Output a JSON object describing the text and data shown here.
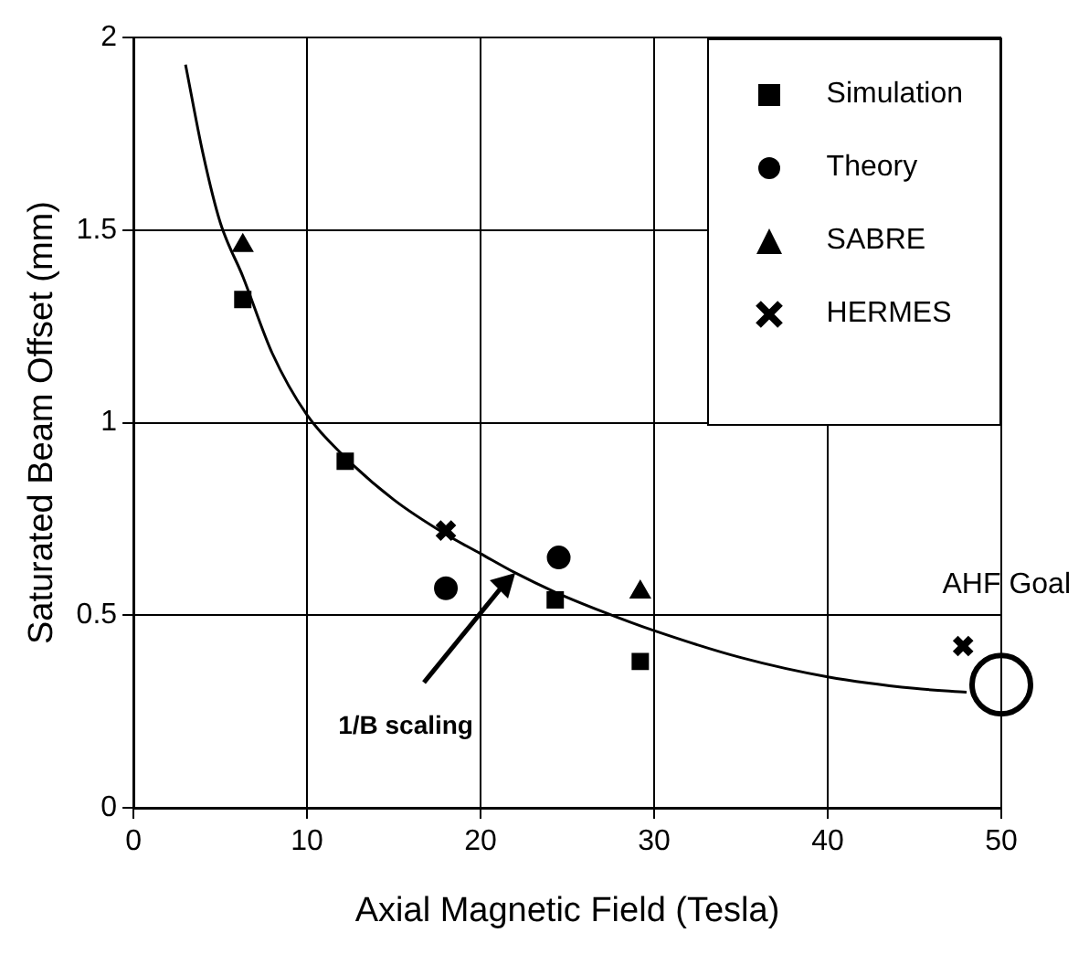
{
  "chart_data": {
    "type": "scatter",
    "xlabel": "Axial Magnetic Field (Tesla)",
    "ylabel": "Saturated Beam Offset (mm)",
    "xlim": [
      0,
      50
    ],
    "xticks": [
      0,
      10,
      20,
      30,
      40,
      50
    ],
    "ylim": [
      0,
      2
    ],
    "yticks": [
      0,
      0.5,
      1,
      1.5,
      2
    ],
    "grid": true,
    "legend": "top right",
    "series": [
      {
        "name": "Simulation",
        "color": "#000000",
        "marker": "square",
        "x": [
          6.3,
          12.2,
          24.3,
          29.2
        ],
        "values": [
          1.32,
          0.9,
          0.54,
          0.38
        ]
      },
      {
        "name": "Theory",
        "color": "#000000",
        "marker": "circle",
        "x": [
          18,
          24.5
        ],
        "values": [
          0.57,
          0.65
        ]
      },
      {
        "name": "SABRE",
        "color": "#000000",
        "marker": "triangle",
        "x": [
          6.3,
          29.2
        ],
        "values": [
          1.46,
          0.56
        ]
      },
      {
        "name": "HERMES",
        "color": "#000000",
        "marker": "cross",
        "x": [
          18,
          47.8
        ],
        "values": [
          0.72,
          0.42
        ]
      },
      {
        "type": "line",
        "color": "#000000",
        "marker": "none",
        "x": [
          3,
          4,
          5,
          6.3,
          8,
          10,
          12.2,
          15,
          18,
          20,
          22,
          24.3,
          27,
          30,
          35,
          40,
          45,
          48
        ],
        "values": [
          1.93,
          1.7,
          1.52,
          1.38,
          1.18,
          1.02,
          0.91,
          0.8,
          0.71,
          0.66,
          0.61,
          0.56,
          0.51,
          0.46,
          0.39,
          0.34,
          0.31,
          0.3
        ]
      }
    ],
    "annotations": [
      {
        "text": "1/B scaling",
        "x": 22,
        "y": 0.61
      },
      {
        "text": "AHF Goal",
        "x": 50,
        "y": 0.32
      }
    ]
  }
}
